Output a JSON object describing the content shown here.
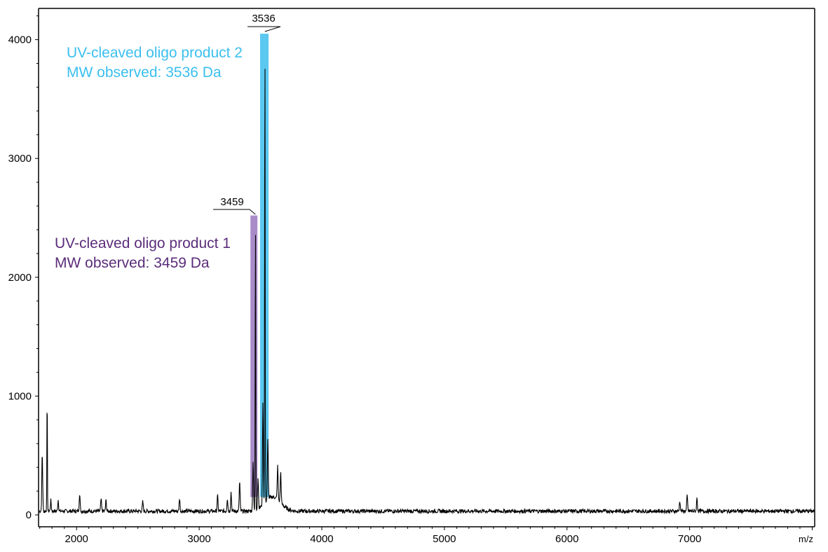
{
  "chart_data": {
    "type": "line",
    "xlabel": "m/z",
    "ylabel": "",
    "xlim": [
      1690,
      8020
    ],
    "ylim": [
      0,
      4260
    ],
    "x_ticks": [
      2000,
      3000,
      4000,
      5000,
      6000,
      7000
    ],
    "y_ticks": [
      0,
      1000,
      2000,
      3000,
      4000
    ],
    "grid": false,
    "baseline_noise": 30,
    "peaks": [
      {
        "x": 1720,
        "y": 490
      },
      {
        "x": 1760,
        "y": 1005
      },
      {
        "x": 1790,
        "y": 90
      },
      {
        "x": 1850,
        "y": 95
      },
      {
        "x": 2025,
        "y": 150
      },
      {
        "x": 2200,
        "y": 100
      },
      {
        "x": 2240,
        "y": 90
      },
      {
        "x": 2540,
        "y": 80
      },
      {
        "x": 2840,
        "y": 110
      },
      {
        "x": 3150,
        "y": 130
      },
      {
        "x": 3230,
        "y": 110
      },
      {
        "x": 3260,
        "y": 160
      },
      {
        "x": 3330,
        "y": 250
      },
      {
        "x": 3440,
        "y": 420
      },
      {
        "x": 3459,
        "y": 2470
      },
      {
        "x": 3480,
        "y": 260
      },
      {
        "x": 3520,
        "y": 850
      },
      {
        "x": 3536,
        "y": 4050
      },
      {
        "x": 3560,
        "y": 500
      },
      {
        "x": 3640,
        "y": 280
      },
      {
        "x": 3665,
        "y": 260
      },
      {
        "x": 6920,
        "y": 90
      },
      {
        "x": 6980,
        "y": 130
      },
      {
        "x": 7060,
        "y": 110
      }
    ],
    "peak_labels": [
      {
        "text": "3459",
        "x": 3459,
        "y": 2470
      },
      {
        "text": "3536",
        "x": 3536,
        "y": 4050
      }
    ],
    "highlights": [
      {
        "x0": 3418,
        "x1": 3475,
        "y0": 150,
        "y1": 2520,
        "color": "#a98bc9"
      },
      {
        "x0": 3497,
        "x1": 3566,
        "y0": 150,
        "y1": 4050,
        "color": "#5bc8ef"
      }
    ],
    "annotations": [
      {
        "lines": [
          "UV-cleaved oligo product 2",
          "MW observed: 3536 Da"
        ],
        "color": "#3bbfef"
      },
      {
        "lines": [
          "UV-cleaved oligo product 1",
          "MW observed: 3459 Da"
        ],
        "color": "#5b2d7a"
      }
    ]
  }
}
